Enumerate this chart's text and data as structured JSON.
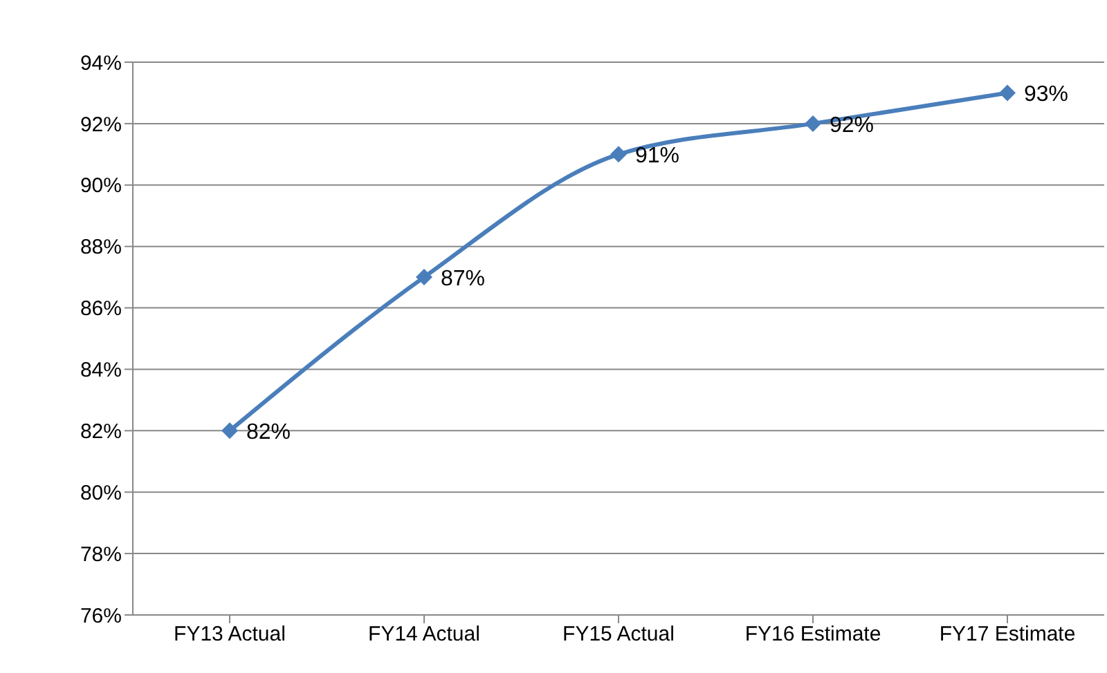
{
  "chart_data": {
    "type": "line",
    "categories": [
      "FY13 Actual",
      "FY14 Actual",
      "FY15 Actual",
      "FY16 Estimate",
      "FY17 Estimate"
    ],
    "series": [
      {
        "color": "#4a7ebb",
        "values": [
          82,
          87,
          91,
          92,
          93
        ],
        "value_labels": [
          "82%",
          "87%",
          "91%",
          "92%",
          "93%"
        ]
      }
    ],
    "ylim": [
      76,
      94
    ],
    "yticks": [
      {
        "value": 76,
        "label": "76%"
      },
      {
        "value": 78,
        "label": "78%"
      },
      {
        "value": 80,
        "label": "80%"
      },
      {
        "value": 82,
        "label": "82%"
      },
      {
        "value": 84,
        "label": "84%"
      },
      {
        "value": 86,
        "label": "86%"
      },
      {
        "value": 88,
        "label": "88%"
      },
      {
        "value": 90,
        "label": "90%"
      },
      {
        "value": 92,
        "label": "92%"
      },
      {
        "value": 94,
        "label": "94%"
      }
    ],
    "grid": "y",
    "marker": "diamond",
    "line_style": "solid"
  }
}
